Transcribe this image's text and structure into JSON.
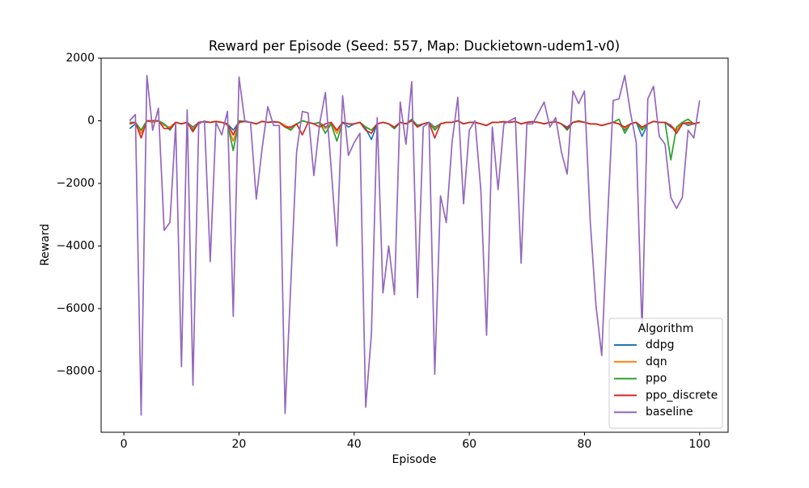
{
  "chart_data": {
    "type": "line",
    "title": "Reward per Episode (Seed: 557, Map: Duckietown-udem1-v0)",
    "x_label": "Episode",
    "y_label": "Reward",
    "x": [
      1,
      2,
      3,
      4,
      5,
      6,
      7,
      8,
      9,
      10,
      11,
      12,
      13,
      14,
      15,
      16,
      17,
      18,
      19,
      20,
      21,
      22,
      23,
      24,
      25,
      26,
      27,
      28,
      29,
      30,
      31,
      32,
      33,
      34,
      35,
      36,
      37,
      38,
      39,
      40,
      41,
      42,
      43,
      44,
      45,
      46,
      47,
      48,
      49,
      50,
      51,
      52,
      53,
      54,
      55,
      56,
      57,
      58,
      59,
      60,
      61,
      62,
      63,
      64,
      65,
      66,
      67,
      68,
      69,
      70,
      71,
      72,
      73,
      74,
      75,
      76,
      77,
      78,
      79,
      80,
      81,
      82,
      83,
      84,
      85,
      86,
      87,
      88,
      89,
      90,
      91,
      92,
      93,
      94,
      95,
      96,
      97,
      98,
      99,
      100
    ],
    "xlim": [
      -3.95,
      104.95
    ],
    "xticks": [
      0,
      20,
      40,
      60,
      80,
      100
    ],
    "ylim": [
      -9950,
      2000
    ],
    "yticks": [
      {
        "value": -8000,
        "label": "−8000"
      },
      {
        "value": -6000,
        "label": "−6000"
      },
      {
        "value": -4000,
        "label": "−4000"
      },
      {
        "value": -2000,
        "label": "−2000"
      },
      0,
      2000
    ],
    "legend_title": "Algorithm",
    "legend_position": "lower right",
    "grid": false,
    "series": [
      {
        "name": "ddpg",
        "color": "#1f77b4",
        "values": [
          -250,
          -100,
          -300,
          0,
          -50,
          0,
          -100,
          -250,
          -50,
          -100,
          -50,
          -200,
          -50,
          -30,
          -50,
          -20,
          -50,
          -100,
          -300,
          -50,
          -20,
          -50,
          -100,
          -20,
          -50,
          -30,
          -50,
          -200,
          -250,
          -100,
          0,
          -50,
          -100,
          -50,
          -200,
          -100,
          -300,
          -50,
          -200,
          -100,
          -50,
          -250,
          -600,
          -100,
          -50,
          -100,
          -250,
          -50,
          -100,
          0,
          -150,
          -100,
          -50,
          -200,
          -100,
          -50,
          -50,
          0,
          -100,
          -50,
          -50,
          -100,
          -150,
          -50,
          -50,
          -30,
          -50,
          -20,
          -100,
          -50,
          -30,
          -50,
          -100,
          -50,
          -30,
          -100,
          -200,
          -50,
          -20,
          -50,
          -100,
          -100,
          -150,
          -100,
          -50,
          -100,
          -300,
          -100,
          -50,
          -500,
          -100,
          -20,
          -50,
          -50,
          -200,
          -300,
          -50,
          -150,
          -100,
          -50
        ]
      },
      {
        "name": "dqn",
        "color": "#ff7f0e",
        "values": [
          -100,
          -50,
          -400,
          0,
          -50,
          0,
          -150,
          -200,
          -50,
          -100,
          -50,
          -250,
          -50,
          -30,
          -50,
          -20,
          -50,
          -150,
          -650,
          -50,
          -20,
          -50,
          -100,
          -20,
          -50,
          -30,
          -50,
          -150,
          -250,
          -100,
          0,
          -50,
          -100,
          -50,
          -250,
          -100,
          -400,
          -50,
          -100,
          -100,
          -50,
          -200,
          -300,
          -100,
          -50,
          -100,
          -200,
          -50,
          -100,
          0,
          -150,
          -100,
          -50,
          -250,
          -100,
          -50,
          -50,
          0,
          -100,
          -50,
          -50,
          -100,
          -150,
          -50,
          -50,
          -30,
          -50,
          -20,
          -100,
          -50,
          -30,
          -50,
          -100,
          -50,
          -30,
          -100,
          -250,
          -50,
          -20,
          -50,
          -100,
          -100,
          -150,
          -100,
          -50,
          -100,
          -250,
          -100,
          -50,
          -250,
          -100,
          -20,
          -50,
          -50,
          -150,
          -300,
          -50,
          -100,
          -100,
          -50
        ]
      },
      {
        "name": "ppo",
        "color": "#2ca02c",
        "values": [
          -50,
          -50,
          -300,
          0,
          0,
          0,
          -100,
          -300,
          -50,
          -100,
          -50,
          -300,
          -50,
          -30,
          -50,
          -20,
          -50,
          -100,
          -950,
          0,
          -20,
          -50,
          -100,
          -20,
          -50,
          -30,
          -50,
          -200,
          -300,
          -100,
          0,
          -50,
          -100,
          -50,
          -400,
          -100,
          -650,
          -50,
          -100,
          -100,
          -50,
          -200,
          -300,
          -100,
          -50,
          -100,
          -250,
          -50,
          -100,
          50,
          -150,
          -100,
          -50,
          -300,
          -100,
          -50,
          -50,
          0,
          -100,
          -50,
          -50,
          -100,
          -150,
          -50,
          -50,
          -30,
          -50,
          -20,
          -100,
          -50,
          -30,
          -50,
          -100,
          -50,
          -30,
          -100,
          -300,
          -50,
          0,
          -50,
          -100,
          -100,
          -150,
          -100,
          -50,
          50,
          -400,
          -100,
          -50,
          -300,
          -100,
          -20,
          -50,
          -50,
          -1250,
          -200,
          -50,
          50,
          -100,
          -50
        ]
      },
      {
        "name": "ppo_discrete",
        "color": "#d62728",
        "values": [
          -100,
          -50,
          -550,
          0,
          0,
          0,
          -250,
          -250,
          -50,
          -100,
          -50,
          -350,
          -50,
          -30,
          -50,
          -20,
          -50,
          -100,
          -450,
          -50,
          -20,
          -50,
          -100,
          -20,
          -50,
          -30,
          -50,
          -200,
          -200,
          -100,
          -450,
          -50,
          -100,
          -200,
          -100,
          -50,
          -300,
          -50,
          -100,
          -100,
          -50,
          -300,
          -400,
          -100,
          -50,
          -100,
          -200,
          -50,
          -100,
          0,
          -200,
          -100,
          -50,
          -550,
          -100,
          -50,
          -50,
          0,
          -100,
          -50,
          -50,
          -100,
          -150,
          -50,
          -50,
          -30,
          -50,
          -20,
          -100,
          -50,
          -30,
          -50,
          -100,
          -50,
          -30,
          -100,
          -250,
          -50,
          -20,
          -50,
          -100,
          -100,
          -150,
          -100,
          -50,
          -100,
          -200,
          -100,
          -50,
          -200,
          -100,
          -20,
          -50,
          -50,
          -150,
          -400,
          -100,
          -50,
          -100,
          -50
        ]
      },
      {
        "name": "baseline",
        "color": "#9467bd",
        "values": [
          0,
          200,
          -9400,
          1450,
          -300,
          400,
          -3500,
          -3250,
          -100,
          -7850,
          350,
          -8450,
          -100,
          0,
          -4500,
          -50,
          -450,
          300,
          -6250,
          1400,
          0,
          -50,
          -2500,
          -900,
          450,
          -150,
          -150,
          -9350,
          -5200,
          -1000,
          300,
          250,
          -1750,
          -100,
          900,
          -1500,
          -4000,
          800,
          -1100,
          -700,
          -400,
          -9150,
          -6800,
          100,
          -5500,
          -4000,
          -5550,
          600,
          -750,
          1250,
          -5650,
          -200,
          -50,
          -8100,
          -2400,
          -3250,
          -700,
          750,
          -2650,
          -300,
          0,
          -2200,
          -6850,
          -200,
          -2200,
          -100,
          0,
          100,
          -4550,
          -100,
          -100,
          250,
          600,
          -200,
          100,
          -1000,
          -1700,
          950,
          550,
          950,
          -3200,
          -5900,
          -7500,
          -3200,
          650,
          700,
          1450,
          250,
          -700,
          -6700,
          700,
          1100,
          -500,
          -750,
          -2450,
          -2800,
          -2450,
          -300,
          -550,
          650
        ]
      }
    ]
  }
}
